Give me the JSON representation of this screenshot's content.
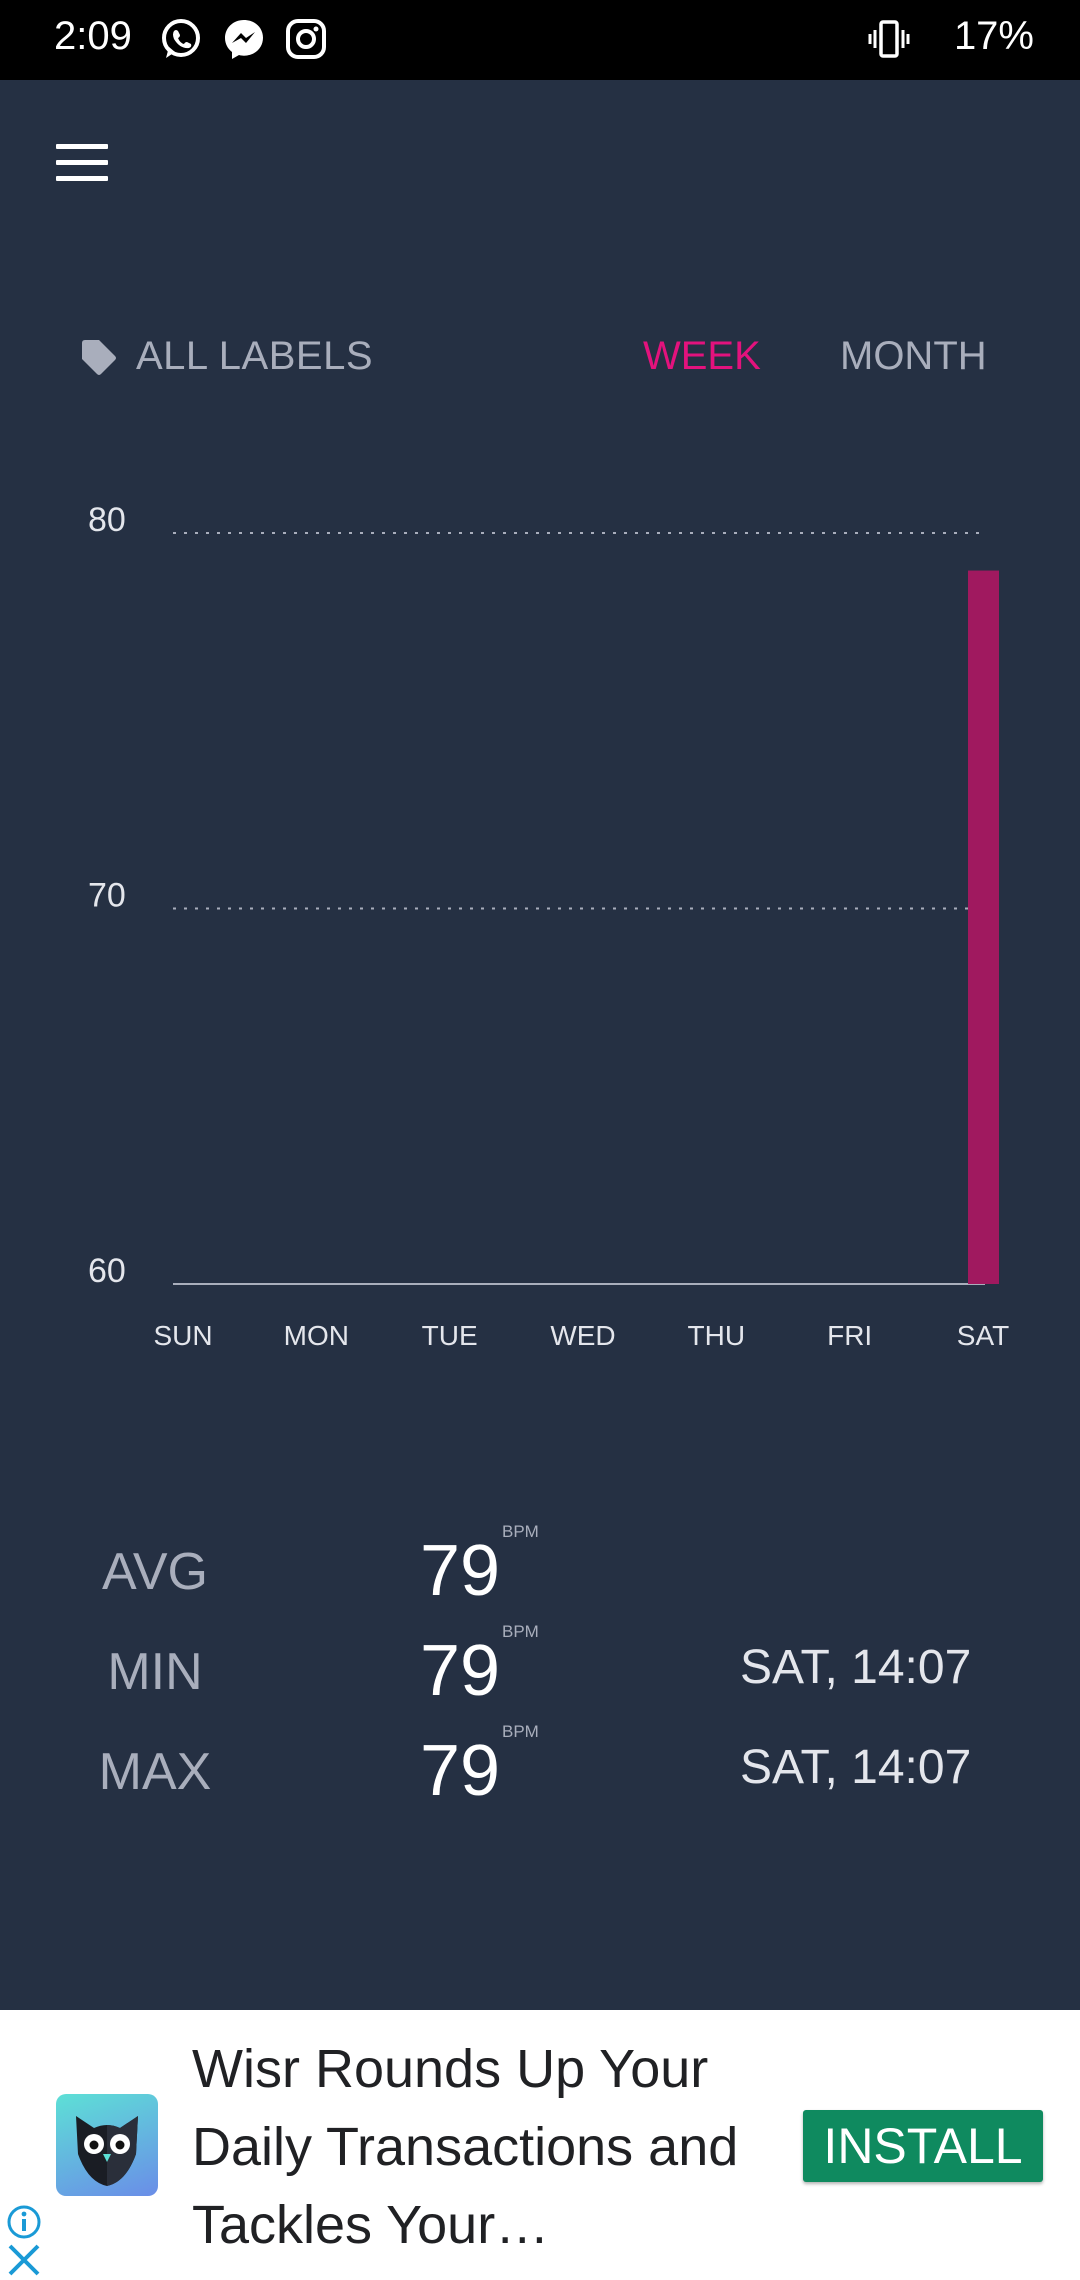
{
  "status_bar": {
    "time": "2:09",
    "notification_icons": [
      "whatsapp-icon",
      "messenger-icon",
      "instagram-icon"
    ],
    "vibrate_icon": "vibrate-icon",
    "battery": "17%"
  },
  "header": {
    "menu_icon": "hamburger-menu-icon"
  },
  "filters": {
    "labels": "ALL LABELS",
    "tabs": [
      {
        "label": "WEEK",
        "active": true
      },
      {
        "label": "MONTH",
        "active": false
      }
    ]
  },
  "colors": {
    "background": "#253043",
    "accent": "#e3127d",
    "bar": "#a0195f",
    "muted_text": "#a9aebc"
  },
  "chart_data": {
    "type": "bar",
    "categories": [
      "SUN",
      "MON",
      "TUE",
      "WED",
      "THU",
      "FRI",
      "SAT"
    ],
    "values": [
      null,
      null,
      null,
      null,
      null,
      null,
      79
    ],
    "ylim": [
      60,
      80
    ],
    "yticks": [
      60,
      70,
      80
    ],
    "grid": true,
    "ylabel": "",
    "xlabel": ""
  },
  "stats": [
    {
      "label": "AVG",
      "value": "79",
      "unit": "BPM",
      "when": ""
    },
    {
      "label": "MIN",
      "value": "79",
      "unit": "BPM",
      "when": "SAT, 14:07"
    },
    {
      "label": "MAX",
      "value": "79",
      "unit": "BPM",
      "when": "SAT, 14:07"
    }
  ],
  "ad": {
    "text": "Wisr Rounds Up Your Daily Transactions and Tackles Your…",
    "install_label": "INSTALL",
    "info_icon": "info-icon",
    "close_icon": "close-icon"
  }
}
